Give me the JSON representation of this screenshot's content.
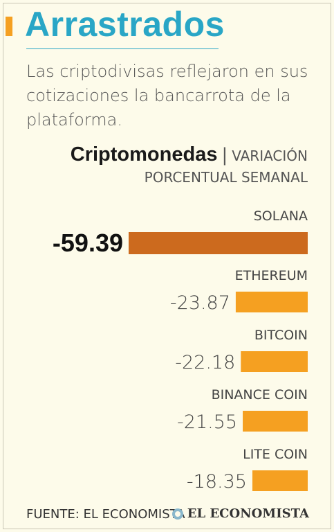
{
  "header": {
    "title": "Arrastrados",
    "subtitle": "Las criptodivisas reflejaron en sus cotizaciones la bancarrota de la plataforma."
  },
  "chart_head": {
    "bold": "Criptomonedas",
    "separator": "|",
    "light": "VARIACIÓN",
    "line2": "PORCENTUAL SEMANAL"
  },
  "footer": {
    "source": "FUENTE: EL ECONOMISTA",
    "brand": "EL ECONOMISTA"
  },
  "colors": {
    "title": "#29a6c6",
    "accent": "#f5a021",
    "highlight_bar": "#cc6a1e",
    "bar": "#f5a021"
  },
  "chart_data": {
    "type": "bar",
    "orientation": "horizontal",
    "categories": [
      "SOLANA",
      "ETHEREUM",
      "BITCOIN",
      "BINANCE COIN",
      "LITE COIN"
    ],
    "values": [
      -59.39,
      -23.87,
      -22.18,
      -21.55,
      -18.35
    ],
    "value_labels": [
      "-59.39",
      "-23.87",
      "-22.18",
      "-21.55",
      "-18.35"
    ],
    "highlight_index": 0,
    "title": "Criptomonedas",
    "ylabel": "VARIACIÓN PORCENTUAL SEMANAL"
  }
}
